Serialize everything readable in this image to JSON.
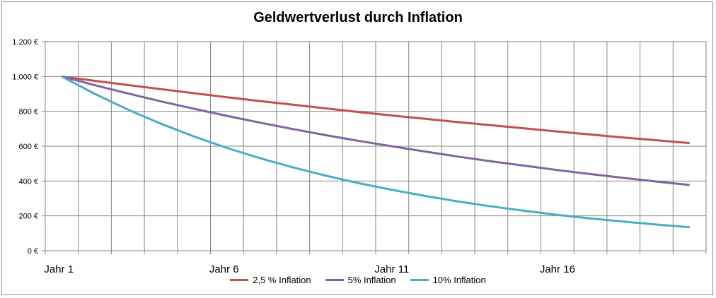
{
  "chart_data": {
    "type": "line",
    "title": "Geldwertverlust durch Inflation",
    "xlabel": "",
    "ylabel": "",
    "x": [
      1,
      2,
      3,
      4,
      5,
      6,
      7,
      8,
      9,
      10,
      11,
      12,
      13,
      14,
      15,
      16,
      17,
      18,
      19,
      20
    ],
    "x_tick_labels": [
      {
        "x": 1,
        "label": "Jahr 1"
      },
      {
        "x": 6,
        "label": "Jahr 6"
      },
      {
        "x": 11,
        "label": "Jahr 11"
      },
      {
        "x": 16,
        "label": "Jahr 16"
      }
    ],
    "ylim": [
      0,
      1200
    ],
    "y_ticks": [
      0,
      200,
      400,
      600,
      800,
      1000,
      1200
    ],
    "y_tick_labels": [
      "0 €",
      "200 €",
      "400 €",
      "600 €",
      "800 €",
      "1.000 €",
      "1.200 €"
    ],
    "grid": true,
    "legend_position": "bottom",
    "series": [
      {
        "name": "2,5 % Inflation",
        "color": "#c0504d",
        "values": [
          1000,
          975,
          951,
          927,
          904,
          881,
          859,
          838,
          817,
          796,
          776,
          757,
          738,
          720,
          702,
          684,
          667,
          650,
          634,
          618
        ]
      },
      {
        "name": "5% Inflation",
        "color": "#8064a2",
        "values": [
          1000,
          950,
          903,
          857,
          815,
          774,
          735,
          698,
          663,
          630,
          599,
          569,
          540,
          513,
          488,
          463,
          440,
          418,
          397,
          377
        ]
      },
      {
        "name": "10% Inflation",
        "color": "#4bacc6",
        "values": [
          1000,
          900,
          810,
          729,
          656,
          590,
          531,
          478,
          430,
          387,
          349,
          314,
          282,
          254,
          229,
          206,
          185,
          167,
          150,
          135
        ]
      }
    ]
  }
}
